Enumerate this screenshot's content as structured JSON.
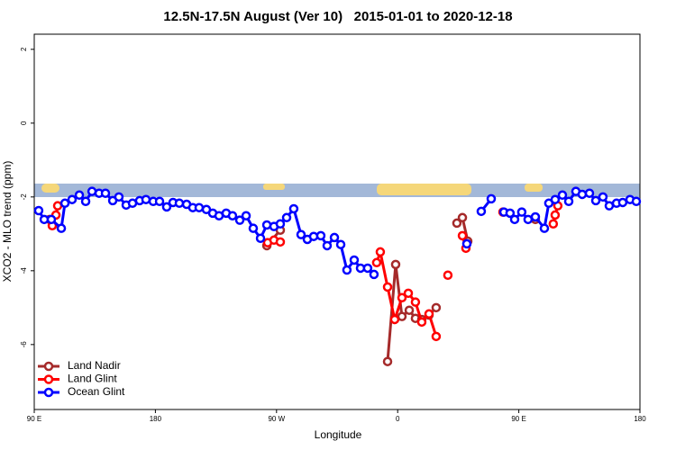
{
  "chart_data": {
    "type": "line",
    "title": "12.5N-17.5N August (Ver 10)   2015-01-01 to 2020-12-18",
    "x_label": "Longitude",
    "y_label": "XCO2 - MLO trend (ppm)",
    "xlim": [
      90,
      540
    ],
    "xticks": [
      {
        "value": 90,
        "label": "90 E"
      },
      180,
      {
        "value": 270,
        "label": "90 W"
      },
      {
        "value": 360,
        "label": "0"
      },
      {
        "value": 450,
        "label": "90 E"
      },
      {
        "value": 540,
        "label": "180"
      }
    ],
    "ylim": [
      -7.76,
      2.41
    ],
    "yticks": [
      2,
      0,
      -2,
      -4,
      -6
    ],
    "legend": "bottom left",
    "series": [
      {
        "name": "Land Nadir",
        "color": "#a52a2a",
        "x": [
          101.4,
          null,
          262.8,
          272.8,
          null,
          352.5,
          358.5,
          363.2,
          368.6,
          373.2,
          377.9,
          383.3,
          388.6,
          null,
          404.0,
          408.1,
          412.1,
          null,
          462.3
        ],
        "values": [
          -2.61,
          null,
          -3.32,
          -2.9,
          null,
          -6.46,
          -3.83,
          -5.24,
          -5.07,
          -5.29,
          -5.32,
          -5.2,
          -5.0,
          null,
          -2.71,
          -2.56,
          -3.2,
          null,
          -2.61
        ]
      },
      {
        "name": "Land Glint",
        "color": "#ff0000",
        "x": [
          103.4,
          106.1,
          107.4,
          null,
          263.4,
          268.1,
          272.8,
          null,
          344.4,
          347.1,
          352.5,
          357.8,
          363.2,
          367.9,
          373.2,
          377.9,
          383.3,
          388.6,
          null,
          397.3,
          null,
          408.1,
          410.7,
          null,
          438.2,
          null,
          475.6,
          477.0,
          479.0
        ],
        "values": [
          -2.78,
          -2.49,
          -2.24,
          null,
          -3.24,
          -3.17,
          -3.22,
          null,
          -3.78,
          -3.49,
          -4.44,
          -5.32,
          -4.73,
          -4.61,
          -4.85,
          -5.39,
          -5.17,
          -5.78,
          null,
          -4.12,
          null,
          -3.05,
          -3.39,
          null,
          -2.41,
          null,
          -2.73,
          -2.49,
          -2.24
        ]
      },
      {
        "name": "Ocean Glint",
        "color": "#0000ff",
        "x": [
          93.3,
          97.4,
          102.7,
          110.1,
          112.8,
          118.1,
          123.5,
          128.2,
          132.9,
          138.2,
          142.9,
          148.3,
          152.9,
          158.3,
          163.0,
          168.3,
          173.0,
          178.4,
          183.1,
          188.4,
          193.1,
          197.8,
          203.2,
          207.8,
          212.5,
          217.9,
          222.6,
          227.3,
          232.6,
          237.3,
          242.7,
          247.4,
          252.7,
          258.1,
          262.8,
          268.1,
          272.8,
          277.5,
          282.8,
          288.2,
          292.9,
          297.6,
          302.9,
          307.6,
          313.0,
          317.7,
          322.3,
          327.7,
          332.4,
          337.7,
          342.4,
          null,
          411.4,
          null,
          422.1,
          429.5,
          null,
          438.9,
          443.5,
          446.9,
          452.2,
          456.9,
          462.3,
          469.0,
          472.3,
          477.0,
          482.4,
          487.1,
          492.4,
          497.1,
          502.5,
          507.2,
          512.5,
          517.2,
          522.6,
          527.2,
          532.6,
          537.3
        ],
        "values": [
          -2.37,
          -2.61,
          -2.61,
          -2.85,
          -2.17,
          -2.07,
          -1.95,
          -2.12,
          -1.85,
          -1.9,
          -1.9,
          -2.1,
          -2.0,
          -2.22,
          -2.17,
          -2.1,
          -2.07,
          -2.12,
          -2.12,
          -2.27,
          -2.15,
          -2.17,
          -2.2,
          -2.29,
          -2.29,
          -2.34,
          -2.44,
          -2.51,
          -2.44,
          -2.51,
          -2.63,
          -2.51,
          -2.85,
          -3.12,
          -2.76,
          -2.8,
          -2.73,
          -2.56,
          -2.32,
          -3.02,
          -3.15,
          -3.07,
          -3.05,
          -3.32,
          -3.1,
          -3.29,
          -3.98,
          -3.71,
          -3.93,
          -3.93,
          -4.1,
          null,
          -3.27,
          null,
          -2.39,
          -2.05,
          null,
          -2.41,
          -2.44,
          -2.61,
          -2.41,
          -2.61,
          -2.54,
          -2.85,
          -2.17,
          -2.07,
          -1.95,
          -2.12,
          -1.85,
          -1.93,
          -1.9,
          -2.1,
          -2.0,
          -2.24,
          -2.17,
          -2.15,
          -2.07,
          -2.12
        ]
      }
    ]
  }
}
